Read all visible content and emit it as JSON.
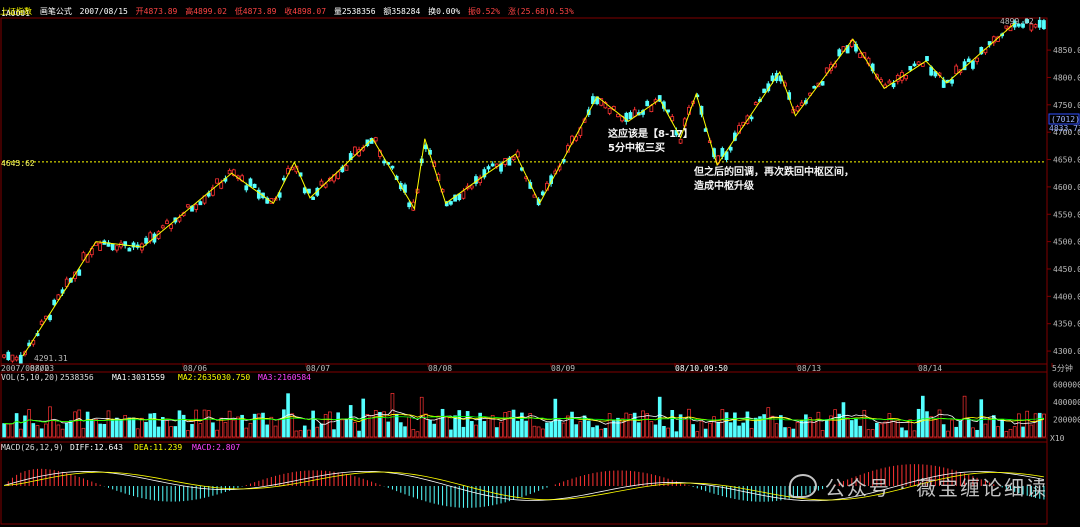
{
  "header": {
    "instrument": "上证指数",
    "formula": "画笔公式",
    "date": "2007/08/15",
    "open": "开4873.89",
    "high": "高4899.02",
    "low": "低4873.89",
    "close": "收4898.07",
    "volume": "量2538356",
    "amount": "额358284",
    "turnover": "换0.00%",
    "amplitude": "振0.52%",
    "change": "涨(25.68)0.53%"
  },
  "price_panel": {
    "code_label": "1A0001",
    "high_marker": "4899.02",
    "low_marker": "4291.31",
    "pivot_level_label": "4645.62",
    "pivot_level": 4645.62,
    "y_ticks": [
      4300,
      4350,
      4400,
      4450,
      4500,
      4550,
      4600,
      4650,
      4700,
      4750,
      4800,
      4850
    ],
    "y_tick_labels": [
      "4300.00",
      "4350.00",
      "4400.00",
      "4450.00",
      "4500.00",
      "4550.00",
      "4600.00",
      "4650.00",
      "4700.00",
      "4750.00",
      "4800.00",
      "4850.00"
    ],
    "y_min": 4280,
    "y_max": 4905,
    "cursor_box": "(7012)",
    "cursor_value": "4833.73"
  },
  "x_axis": {
    "labels": [
      "2007/08/02",
      "08/03",
      "08/06",
      "08/07",
      "08/08",
      "08/09",
      "08/10,09:50",
      "08/13",
      "08/14",
      "5分钟"
    ],
    "highlight_label": "08/10,09:50"
  },
  "volume_panel": {
    "label": "VOL(5,10,20)",
    "value": "2538356",
    "ma1": "MA1:3031559",
    "ma2": "MA2:2635030.750",
    "ma3": "MA3:2160584",
    "y_ticks": [
      "600000",
      "400000",
      "200000"
    ],
    "unit": "X10"
  },
  "macd_panel": {
    "label": "MACD(26,12,9)",
    "diff": "DIFF:12.643",
    "dea": "DEA:11.239",
    "macd": "MACD:2.807"
  },
  "annotations": {
    "third_buy_line1": "这应该是【8-17】",
    "third_buy_line2": "5分中枢三买",
    "upgrade_line1": "但之后的回调，再次跌回中枢区间，",
    "upgrade_line2": "造成中枢升级"
  },
  "watermark": "公众号 · 薇宝缠论细读",
  "colors": {
    "up": "#ff3333",
    "down": "#54ffff",
    "stroke": "#ffff00",
    "ma1": "#ffffff",
    "ma2": "#ffff00",
    "ma3": "#ff44ff",
    "ma4": "#00ff00",
    "grid": "#800000",
    "level": "#ffff00"
  },
  "strokes": [
    [
      0.02,
      4291
    ],
    [
      0.09,
      4500
    ],
    [
      0.135,
      4490
    ],
    [
      0.22,
      4625
    ],
    [
      0.26,
      4570
    ],
    [
      0.28,
      4645
    ],
    [
      0.295,
      4580
    ],
    [
      0.355,
      4688
    ],
    [
      0.395,
      4560
    ],
    [
      0.405,
      4688
    ],
    [
      0.425,
      4570
    ],
    [
      0.465,
      4625
    ],
    [
      0.492,
      4660
    ],
    [
      0.515,
      4570
    ],
    [
      0.57,
      4765
    ],
    [
      0.6,
      4720
    ],
    [
      0.63,
      4760
    ],
    [
      0.65,
      4690
    ],
    [
      0.665,
      4770
    ],
    [
      0.685,
      4640
    ],
    [
      0.745,
      4810
    ],
    [
      0.76,
      4730
    ],
    [
      0.815,
      4870
    ],
    [
      0.845,
      4780
    ],
    [
      0.885,
      4830
    ],
    [
      0.905,
      4790
    ],
    [
      0.97,
      4899
    ]
  ]
}
